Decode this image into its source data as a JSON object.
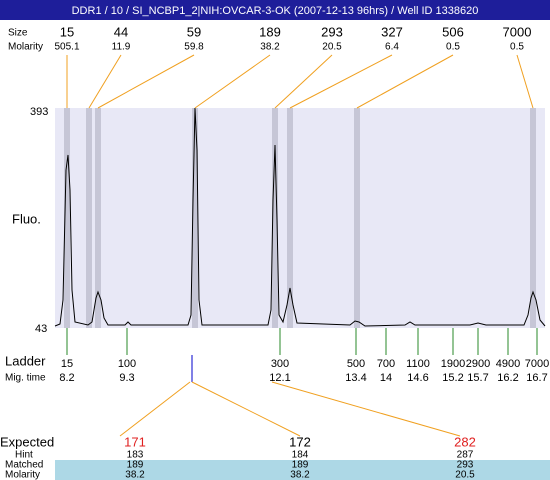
{
  "header": {
    "title": "DDR1 / 10 / SI_NCBP1_2|NIH:OVCAR-3-OK (2007-12-13 96hrs) / Well ID 1338620"
  },
  "peaks": {
    "size_label": "Size",
    "molarity_label": "Molarity",
    "sizes": [
      "15",
      "44",
      "59",
      "189",
      "293",
      "327",
      "506",
      "7000"
    ],
    "molarities": [
      "505.1",
      "11.9",
      "59.8",
      "38.2",
      "20.5",
      "6.4",
      "0.5",
      "0.5"
    ]
  },
  "axis": {
    "label": "Fluo.",
    "top": "393",
    "bottom": "43"
  },
  "ladder": {
    "label": "Ladder",
    "time_label": "Mig. time",
    "sizes": [
      "15",
      "100",
      "300",
      "500",
      "700",
      "1100",
      "1900",
      "2900",
      "4900",
      "7000"
    ],
    "times": [
      "8.2",
      "9.3",
      "12.1",
      "13.4",
      "14",
      "14.6",
      "15.2",
      "15.7",
      "16.2",
      "16.7"
    ]
  },
  "expected": {
    "label": "Expected",
    "hint_label": "Hint",
    "matched_label": "Matched",
    "molarity_label": "Molarity",
    "values": [
      "171",
      "172",
      "282"
    ],
    "hints": [
      "183",
      "184",
      "287"
    ],
    "matched": [
      "189",
      "189",
      "293"
    ],
    "molarities": [
      "38.2",
      "38.2",
      "20.5"
    ]
  }
}
